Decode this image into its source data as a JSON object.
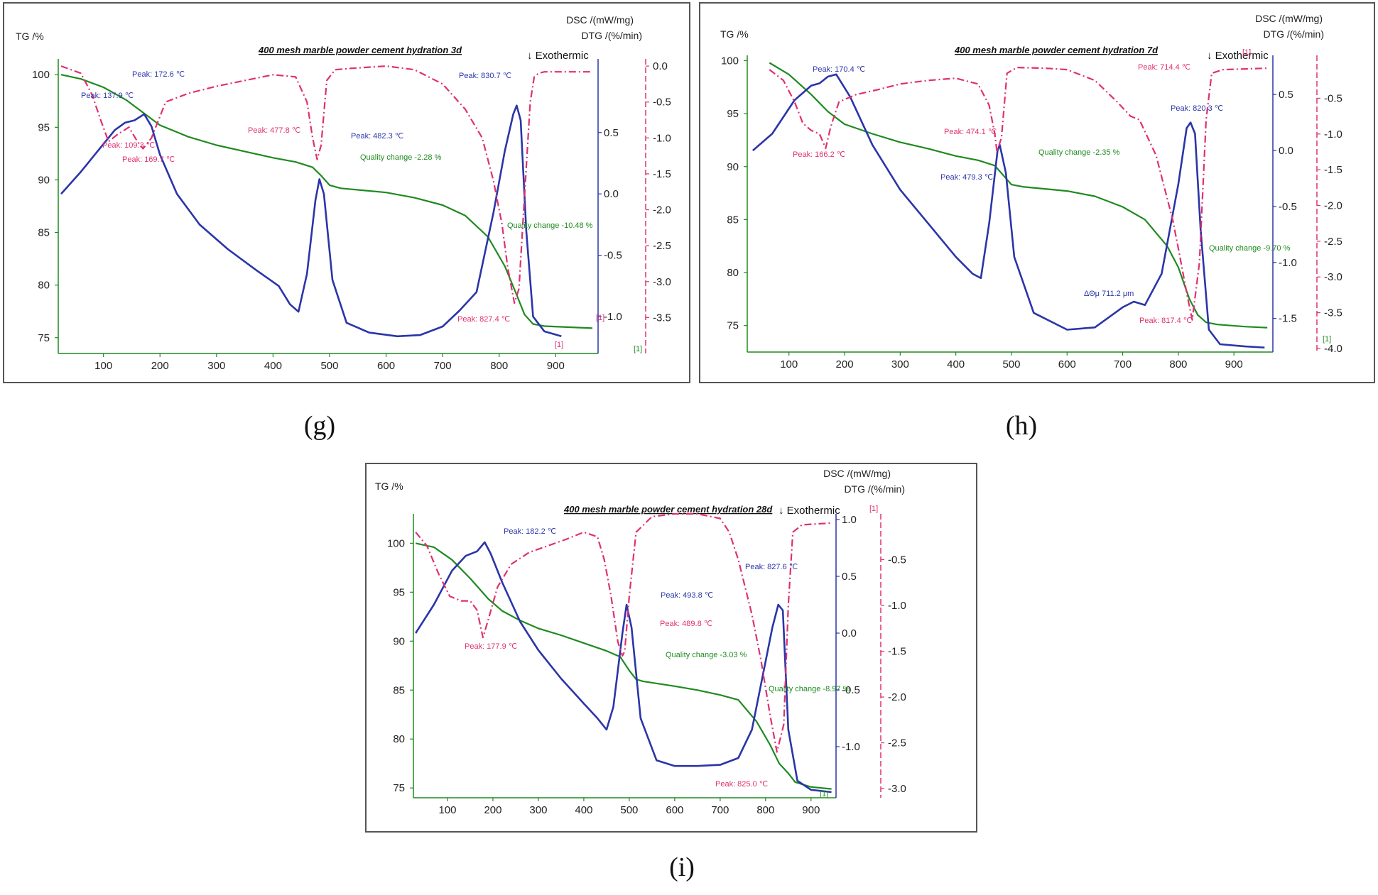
{
  "captions": [
    "(g)",
    "(h)",
    "(i)"
  ],
  "colors": {
    "tg": "#1f8a1f",
    "dtg": "#e0306f",
    "dsc": "#2b35a8"
  },
  "chart_data": [
    {
      "type": "line",
      "title": "400 mesh marble powder cement hydration 3d",
      "xlabel": "",
      "tg_label": "TG /%",
      "dsc_label": "DSC /(mW/mg)",
      "dtg_label": "DTG /(%/min)",
      "exothermic": "↓ Exothermic",
      "xlim": [
        20,
        975
      ],
      "x_ticks": [
        100,
        200,
        300,
        400,
        500,
        600,
        700,
        800,
        900
      ],
      "tg_axis": {
        "range": [
          73.5,
          101.5
        ],
        "ticks": [
          75,
          80,
          85,
          90,
          95,
          100
        ]
      },
      "dsc_axis": {
        "range": [
          -1.3,
          1.1
        ],
        "ticks": [
          0.5,
          0.0,
          -0.5,
          -1.0
        ],
        "tick_labels": [
          "0.5",
          "0.0",
          "-0.5",
          "-1.0"
        ]
      },
      "dtg_axis": {
        "range": [
          -4.0,
          0.1
        ],
        "ticks": [
          0.0,
          -0.5,
          -1.0,
          -1.5,
          -2.0,
          -2.5,
          -3.0,
          -3.5
        ],
        "tick_labels": [
          "0.0",
          "-0.5",
          "-1.0",
          "-1.5",
          "-2.0",
          "-2.5",
          "-3.0",
          "-3.5"
        ]
      },
      "series": [
        {
          "name": "TG",
          "axis": "tg",
          "x": [
            25,
            60,
            100,
            140,
            170,
            200,
            250,
            300,
            350,
            400,
            440,
            470,
            485,
            500,
            520,
            600,
            650,
            700,
            740,
            780,
            810,
            830,
            845,
            860,
            880,
            920,
            965
          ],
          "y": [
            100,
            99.6,
            98.8,
            97.6,
            96.4,
            95.2,
            94.1,
            93.3,
            92.7,
            92.1,
            91.7,
            91.2,
            90.4,
            89.5,
            89.2,
            88.8,
            88.3,
            87.6,
            86.6,
            84.6,
            81.8,
            79.2,
            77.2,
            76.3,
            76.1,
            76.0,
            75.9
          ]
        },
        {
          "name": "DSC",
          "axis": "dsc",
          "x": [
            25,
            60,
            90,
            120,
            138,
            155,
            172,
            185,
            200,
            230,
            270,
            320,
            370,
            410,
            430,
            445,
            460,
            475,
            482,
            490,
            505,
            530,
            570,
            620,
            660,
            700,
            730,
            760,
            790,
            810,
            825,
            831,
            838,
            848,
            860,
            880,
            910
          ],
          "y": [
            0.0,
            0.18,
            0.35,
            0.52,
            0.58,
            0.6,
            0.65,
            0.55,
            0.32,
            0.0,
            -0.25,
            -0.45,
            -0.62,
            -0.75,
            -0.9,
            -0.96,
            -0.65,
            -0.05,
            0.12,
            0.0,
            -0.7,
            -1.05,
            -1.13,
            -1.16,
            -1.15,
            -1.08,
            -0.95,
            -0.8,
            -0.15,
            0.35,
            0.65,
            0.72,
            0.6,
            -0.3,
            -1.0,
            -1.12,
            -1.16
          ]
        },
        {
          "name": "DTG",
          "axis": "dtg",
          "x": [
            25,
            60,
            80,
            95,
            109,
            125,
            145,
            160,
            170,
            185,
            210,
            250,
            300,
            350,
            400,
            440,
            460,
            470,
            478,
            485,
            495,
            510,
            540,
            600,
            650,
            700,
            740,
            770,
            790,
            805,
            815,
            827,
            835,
            845,
            855,
            862,
            870,
            880,
            965
          ],
          "y": [
            0.0,
            -0.1,
            -0.4,
            -0.75,
            -1.05,
            -0.95,
            -0.85,
            -1.05,
            -1.15,
            -1.0,
            -0.5,
            -0.38,
            -0.28,
            -0.2,
            -0.12,
            -0.15,
            -0.5,
            -1.0,
            -1.3,
            -1.1,
            -0.2,
            -0.05,
            -0.03,
            0.0,
            -0.05,
            -0.25,
            -0.6,
            -1.0,
            -1.6,
            -2.2,
            -2.8,
            -3.3,
            -3.1,
            -1.8,
            -0.5,
            -0.15,
            -0.1,
            -0.08,
            -0.08
          ]
        }
      ],
      "annotations": [
        {
          "text": "Peak: 137.9 ℃",
          "series": "DSC"
        },
        {
          "text": "Peak: 172.6 ℃",
          "series": "DSC"
        },
        {
          "text": "Peak: 109.3 ℃",
          "series": "DTG"
        },
        {
          "text": "Peak: 169.7 ℃",
          "series": "DTG"
        },
        {
          "text": "Peak: 477.8 ℃",
          "series": "DTG"
        },
        {
          "text": "Peak: 482.3 ℃",
          "series": "DSC"
        },
        {
          "text": "Quality change -2.28 %",
          "series": "TG"
        },
        {
          "text": "Peak: 830.7 ℃",
          "series": "DSC"
        },
        {
          "text": "Quality change -10.48 %",
          "series": "TG"
        },
        {
          "text": "Peak: 827.4 ℃",
          "series": "DTG"
        }
      ],
      "markers": [
        "[1]",
        "[1]",
        "[1]"
      ]
    },
    {
      "type": "line",
      "title": "400 mesh marble powder cement hydration 7d",
      "xlabel": "",
      "tg_label": "TG /%",
      "dsc_label": "DSC /(mW/mg)",
      "dtg_label": "DTG /(%/min)",
      "exothermic": "↓ Exothermic",
      "xlim": [
        25,
        970
      ],
      "x_ticks": [
        100,
        200,
        300,
        400,
        500,
        600,
        700,
        800,
        900
      ],
      "tg_axis": {
        "range": [
          72.5,
          100.5
        ],
        "ticks": [
          75,
          80,
          85,
          90,
          95,
          100
        ]
      },
      "dsc_axis": {
        "range": [
          -1.8,
          0.85
        ],
        "ticks": [
          0.5,
          0.0,
          -0.5,
          -1.0,
          -1.5
        ],
        "tick_labels": [
          "0.5",
          "0.0",
          "-0.5",
          "-1.0",
          "-1.5"
        ]
      },
      "dtg_axis": {
        "range": [
          -4.05,
          0.1
        ],
        "ticks": [
          -0.5,
          -1.0,
          -1.5,
          -2.0,
          -2.5,
          -3.0,
          -3.5,
          -4.0
        ],
        "tick_labels": [
          "-0.5",
          "-1.0",
          "-1.5",
          "-2.0",
          "-2.5",
          "-3.0",
          "-3.5",
          "-4.0"
        ]
      },
      "series": [
        {
          "name": "TG",
          "axis": "tg",
          "x": [
            65,
            100,
            140,
            170,
            200,
            250,
            300,
            350,
            400,
            440,
            470,
            485,
            500,
            520,
            600,
            650,
            700,
            740,
            780,
            800,
            820,
            835,
            850,
            870,
            920,
            960
          ],
          "y": [
            99.8,
            98.7,
            96.8,
            95.2,
            94.0,
            93.1,
            92.3,
            91.7,
            91.0,
            90.6,
            90.1,
            89.2,
            88.3,
            88.1,
            87.7,
            87.2,
            86.2,
            85.0,
            82.5,
            80.5,
            77.5,
            76.0,
            75.3,
            75.1,
            74.9,
            74.8
          ]
        },
        {
          "name": "DSC",
          "axis": "dsc",
          "x": [
            35,
            70,
            110,
            140,
            155,
            170,
            185,
            210,
            250,
            300,
            350,
            400,
            430,
            445,
            460,
            475,
            479,
            490,
            505,
            540,
            600,
            650,
            700,
            720,
            740,
            770,
            800,
            815,
            822,
            830,
            840,
            855,
            875,
            920,
            955
          ],
          "y": [
            0.0,
            0.15,
            0.45,
            0.58,
            0.6,
            0.66,
            0.68,
            0.48,
            0.05,
            -0.35,
            -0.65,
            -0.95,
            -1.1,
            -1.14,
            -0.65,
            0.0,
            0.05,
            -0.2,
            -0.95,
            -1.45,
            -1.6,
            -1.58,
            -1.4,
            -1.35,
            -1.38,
            -1.1,
            -0.3,
            0.2,
            0.25,
            0.15,
            -0.7,
            -1.6,
            -1.73,
            -1.75,
            -1.76
          ]
        },
        {
          "name": "DTG",
          "axis": "dtg",
          "x": [
            65,
            90,
            110,
            125,
            140,
            155,
            166,
            175,
            190,
            220,
            260,
            300,
            350,
            400,
            440,
            460,
            470,
            474,
            482,
            492,
            510,
            560,
            600,
            650,
            690,
            714,
            730,
            760,
            790,
            800,
            817,
            825,
            838,
            850,
            860,
            880,
            960
          ],
          "y": [
            -0.1,
            -0.25,
            -0.55,
            -0.85,
            -0.95,
            -1.0,
            -1.2,
            -0.9,
            -0.55,
            -0.45,
            -0.38,
            -0.3,
            -0.25,
            -0.22,
            -0.3,
            -0.6,
            -1.0,
            -1.25,
            -1.05,
            -0.15,
            -0.07,
            -0.08,
            -0.1,
            -0.25,
            -0.55,
            -0.75,
            -0.8,
            -1.3,
            -2.2,
            -2.6,
            -3.3,
            -3.6,
            -2.8,
            -0.8,
            -0.15,
            -0.1,
            -0.08
          ]
        }
      ],
      "annotations": [
        {
          "text": "Peak: 170.4 ℃",
          "series": "DSC"
        },
        {
          "text": "Peak: 166.2 ℃",
          "series": "DTG"
        },
        {
          "text": "Peak: 474.1 ℃",
          "series": "DTG"
        },
        {
          "text": "Quality change -2.35 %",
          "series": "TG"
        },
        {
          "text": "Peak: 479.3 ℃",
          "series": "DSC"
        },
        {
          "text": "Peak: 714.4 ℃",
          "series": "DTG"
        },
        {
          "text": "Peak: 820.3 ℃",
          "series": "DSC"
        },
        {
          "text": "Quality change -9.70 %",
          "series": "TG"
        },
        {
          "text": "ΔΘμ 711.2 μm",
          "series": "DSC"
        },
        {
          "text": "Peak: 817.4 ℃",
          "series": "DTG"
        }
      ],
      "markers": [
        "[1]",
        "[1]"
      ]
    },
    {
      "type": "line",
      "title": "400 mesh marble powder cement hydration 28d",
      "xlabel": "",
      "tg_label": "TG /%",
      "dsc_label": "DSC /(mW/mg)",
      "dtg_label": "DTG /(%/min)",
      "exothermic": "↓ Exothermic",
      "xlim": [
        25,
        955
      ],
      "x_ticks": [
        100,
        200,
        300,
        400,
        500,
        600,
        700,
        800,
        900
      ],
      "tg_axis": {
        "range": [
          74.0,
          103.0
        ],
        "ticks": [
          75,
          80,
          85,
          90,
          95,
          100
        ]
      },
      "dsc_axis": {
        "range": [
          -1.45,
          1.05
        ],
        "ticks": [
          1.0,
          0.5,
          0.0,
          -0.5,
          -1.0
        ],
        "tick_labels": [
          "1.0",
          "0.5",
          "0.0",
          "-0.5",
          "-1.0"
        ]
      },
      "dtg_axis": {
        "range": [
          -3.1,
          -0.0
        ],
        "ticks": [
          -0.5,
          -1.0,
          -1.5,
          -2.0,
          -2.5,
          -3.0
        ],
        "tick_labels": [
          "-0.5",
          "-1.0",
          "-1.5",
          "-2.0",
          "-2.5",
          "-3.0"
        ]
      },
      "series": [
        {
          "name": "TG",
          "axis": "tg",
          "x": [
            30,
            70,
            110,
            150,
            190,
            220,
            260,
            300,
            350,
            400,
            450,
            480,
            500,
            515,
            530,
            600,
            650,
            700,
            740,
            780,
            810,
            830,
            850,
            865,
            900,
            945
          ],
          "y": [
            100,
            99.6,
            98.3,
            96.4,
            94.3,
            93.1,
            92.1,
            91.3,
            90.6,
            89.8,
            89.0,
            88.4,
            87.0,
            86.1,
            85.9,
            85.4,
            85.0,
            84.5,
            84.0,
            81.8,
            79.4,
            77.5,
            76.5,
            75.6,
            75.1,
            74.9
          ]
        },
        {
          "name": "DSC",
          "axis": "dsc",
          "x": [
            30,
            70,
            110,
            140,
            165,
            182,
            195,
            220,
            260,
            300,
            350,
            400,
            430,
            450,
            465,
            485,
            494,
            505,
            525,
            560,
            600,
            650,
            700,
            740,
            770,
            795,
            815,
            828,
            838,
            850,
            870,
            900,
            945
          ],
          "y": [
            0.0,
            0.25,
            0.55,
            0.68,
            0.72,
            0.8,
            0.7,
            0.45,
            0.1,
            -0.15,
            -0.4,
            -0.62,
            -0.75,
            -0.85,
            -0.65,
            0.0,
            0.25,
            0.05,
            -0.75,
            -1.12,
            -1.17,
            -1.17,
            -1.16,
            -1.1,
            -0.85,
            -0.35,
            0.05,
            0.25,
            0.2,
            -0.85,
            -1.3,
            -1.38,
            -1.4
          ]
        },
        {
          "name": "DTG",
          "axis": "dtg",
          "x": [
            30,
            55,
            80,
            105,
            130,
            150,
            165,
            178,
            190,
            210,
            240,
            280,
            320,
            360,
            400,
            430,
            445,
            460,
            475,
            485,
            490,
            500,
            515,
            550,
            600,
            650,
            700,
            720,
            740,
            770,
            790,
            810,
            825,
            840,
            850,
            860,
            880,
            945
          ],
          "y": [
            -0.2,
            -0.35,
            -0.65,
            -0.9,
            -0.95,
            -0.95,
            -1.05,
            -1.35,
            -1.15,
            -0.8,
            -0.55,
            -0.42,
            -0.35,
            -0.28,
            -0.2,
            -0.25,
            -0.5,
            -0.9,
            -1.4,
            -1.55,
            -1.5,
            -0.9,
            -0.2,
            -0.03,
            0.0,
            0.0,
            -0.05,
            -0.2,
            -0.5,
            -1.1,
            -1.6,
            -2.2,
            -2.6,
            -2.3,
            -1.0,
            -0.2,
            -0.12,
            -0.1
          ]
        }
      ],
      "annotations": [
        {
          "text": "Peak: 182.2 ℃",
          "series": "DSC"
        },
        {
          "text": "Peak: 177.9 ℃",
          "series": "DTG"
        },
        {
          "text": "Peak: 493.8 ℃",
          "series": "DSC"
        },
        {
          "text": "Peak: 489.8 ℃",
          "series": "DTG"
        },
        {
          "text": "Quality change -3.03 %",
          "series": "TG"
        },
        {
          "text": "Peak: 827.6 ℃",
          "series": "DSC"
        },
        {
          "text": "Quality change -8.97 %",
          "series": "TG"
        },
        {
          "text": "Peak: 825.0 ℃",
          "series": "DTG"
        }
      ],
      "markers": [
        "[1]",
        "[1]"
      ]
    }
  ]
}
